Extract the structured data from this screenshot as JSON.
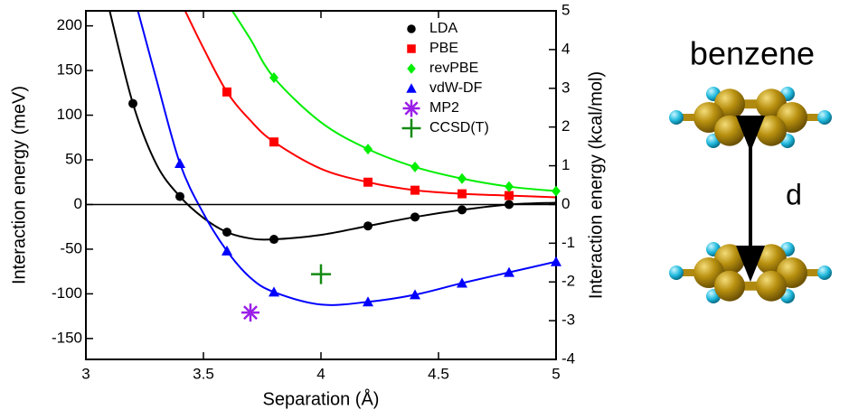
{
  "chart_data": {
    "type": "scatter",
    "xlabel": "Separation (Å)",
    "ylabel": "Interaction energy (meV)",
    "y2label": "Interaction energy (kcal/mol)",
    "xlim": [
      3,
      5
    ],
    "xticks": [
      3,
      3.5,
      4,
      4.5,
      5
    ],
    "ylim": [
      -173.4,
      216.8
    ],
    "yticks": [
      -150,
      -100,
      -50,
      0,
      50,
      100,
      150,
      200
    ],
    "y2lim": [
      -4,
      5
    ],
    "y2ticks": [
      -4,
      -3,
      -2,
      -1,
      0,
      1,
      2,
      3,
      4,
      5
    ],
    "legend": "upper right",
    "series": [
      {
        "name": "LDA",
        "color": "#000000",
        "marker": "circle",
        "x": [
          3.2,
          3.4,
          3.6,
          3.8,
          4.2,
          4.4,
          4.6,
          4.8
        ],
        "values": [
          113,
          9,
          -31,
          -39,
          -24,
          -14,
          -6,
          0
        ],
        "fit_x": [
          3.1,
          3.2,
          3.3,
          3.4,
          3.5,
          3.6,
          3.7,
          3.8,
          4.0,
          4.2,
          4.4,
          4.6,
          4.8,
          5.0
        ],
        "fit_values": [
          218,
          113,
          45,
          9,
          -15,
          -31,
          -38,
          -39,
          -34,
          -24,
          -14,
          -6,
          0,
          2
        ]
      },
      {
        "name": "PBE",
        "color": "#ff0000",
        "marker": "square",
        "x": [
          3.6,
          3.8,
          4.2,
          4.4,
          4.6,
          4.8
        ],
        "values": [
          126,
          70,
          25,
          16,
          12,
          10
        ],
        "fit_x": [
          3.42,
          3.5,
          3.6,
          3.7,
          3.8,
          4.0,
          4.2,
          4.4,
          4.6,
          4.8,
          5.0
        ],
        "fit_values": [
          218,
          175,
          126,
          94,
          70,
          40,
          25,
          16,
          12,
          10,
          8
        ]
      },
      {
        "name": "revPBE",
        "color": "#00ee00",
        "marker": "diamond",
        "x": [
          3.8,
          4.2,
          4.4,
          4.6,
          4.8,
          5.0
        ],
        "values": [
          142,
          62,
          42,
          29,
          20,
          15
        ],
        "fit_x": [
          3.62,
          3.7,
          3.8,
          4.0,
          4.2,
          4.4,
          4.6,
          4.8,
          5.0
        ],
        "fit_values": [
          218,
          185,
          142,
          92,
          62,
          42,
          29,
          20,
          15
        ]
      },
      {
        "name": "vdW-DF",
        "color": "#0000ff",
        "marker": "triangle",
        "x": [
          3.4,
          3.6,
          3.8,
          4.2,
          4.4,
          4.6,
          4.8,
          5.0
        ],
        "values": [
          46,
          -52,
          -98,
          -109,
          -101,
          -88,
          -76,
          -64
        ],
        "fit_x": [
          3.22,
          3.3,
          3.4,
          3.5,
          3.6,
          3.7,
          3.8,
          4.0,
          4.2,
          4.4,
          4.6,
          4.8,
          5.0
        ],
        "fit_values": [
          218,
          140,
          46,
          -10,
          -52,
          -82,
          -98,
          -112,
          -109,
          -101,
          -88,
          -76,
          -64
        ]
      },
      {
        "name": "MP2",
        "color": "#9b1fe8",
        "marker": "asterisk",
        "x": [
          3.7
        ],
        "values": [
          -121
        ]
      },
      {
        "name": "CCSD(T)",
        "color": "#138a13",
        "marker": "plus",
        "x": [
          4.0
        ],
        "values": [
          -78
        ]
      }
    ]
  },
  "figure": {
    "label": "benzene",
    "distance_label": "d"
  }
}
